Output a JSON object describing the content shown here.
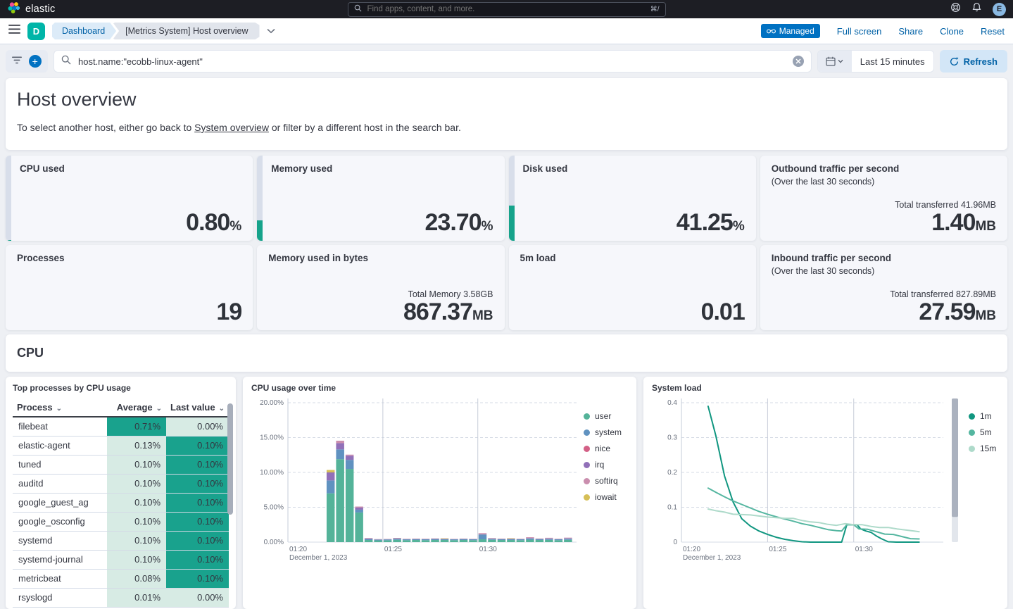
{
  "topbar": {
    "brand": "elastic",
    "search_placeholder": "Find apps, content, and more.",
    "search_shortcut": "⌘/",
    "avatar_initial": "E"
  },
  "navbar": {
    "space_badge": "D",
    "breadcrumb_root": "Dashboard",
    "breadcrumb_current": "[Metrics System] Host overview",
    "managed_label": "Managed",
    "actions": [
      {
        "label": "Full screen"
      },
      {
        "label": "Share"
      },
      {
        "label": "Clone"
      },
      {
        "label": "Reset"
      }
    ]
  },
  "querybar": {
    "query": "host.name:\"ecobb-linux-agent\"",
    "time_range": "Last 15 minutes",
    "refresh_label": "Refresh"
  },
  "overview": {
    "title": "Host overview",
    "desc_before": "To select another host, either go back to ",
    "link_text": "System overview",
    "desc_after": " or filter by a different host in the search bar."
  },
  "metrics": [
    {
      "id": "cpu-used",
      "title": "CPU used",
      "value": "0.80",
      "unit": "%",
      "progress": 0.8
    },
    {
      "id": "memory-used",
      "title": "Memory used",
      "value": "23.70",
      "unit": "%",
      "progress": 23.7
    },
    {
      "id": "disk-used",
      "title": "Disk used",
      "value": "41.25",
      "unit": "%",
      "progress": 41.25
    },
    {
      "id": "outbound-traffic",
      "title": "Outbound traffic per second",
      "subtitle": "(Over the last 30 seconds)",
      "secondary": "Total transferred 41.96MB",
      "value": "1.40",
      "unit": "MB"
    },
    {
      "id": "processes",
      "title": "Processes",
      "value": "19",
      "unit": ""
    },
    {
      "id": "memory-used-bytes",
      "title": "Memory used in bytes",
      "secondary": "Total Memory 3.58GB",
      "value": "867.37",
      "unit": "MB"
    },
    {
      "id": "load-5m",
      "title": "5m load",
      "value": "0.01",
      "unit": ""
    },
    {
      "id": "inbound-traffic",
      "title": "Inbound traffic per second",
      "subtitle": "(Over the last 30 seconds)",
      "secondary": "Total transferred 827.89MB",
      "value": "27.59",
      "unit": "MB"
    }
  ],
  "cpu_section_title": "CPU",
  "process_table": {
    "title": "Top processes by CPU usage",
    "columns": [
      "Process",
      "Average",
      "Last value"
    ],
    "rows": [
      {
        "process": "filebeat",
        "average": "0.71%",
        "avg_heat": "dark",
        "last": "0.00%",
        "last_heat": "light"
      },
      {
        "process": "elastic-agent",
        "average": "0.13%",
        "avg_heat": "light",
        "last": "0.10%",
        "last_heat": "dark"
      },
      {
        "process": "tuned",
        "average": "0.10%",
        "avg_heat": "light",
        "last": "0.10%",
        "last_heat": "dark"
      },
      {
        "process": "auditd",
        "average": "0.10%",
        "avg_heat": "light",
        "last": "0.10%",
        "last_heat": "dark"
      },
      {
        "process": "google_guest_ag",
        "average": "0.10%",
        "avg_heat": "light",
        "last": "0.10%",
        "last_heat": "dark"
      },
      {
        "process": "google_osconfig",
        "average": "0.10%",
        "avg_heat": "light",
        "last": "0.10%",
        "last_heat": "dark"
      },
      {
        "process": "systemd",
        "average": "0.10%",
        "avg_heat": "light",
        "last": "0.10%",
        "last_heat": "dark"
      },
      {
        "process": "systemd-journal",
        "average": "0.10%",
        "avg_heat": "light",
        "last": "0.10%",
        "last_heat": "dark"
      },
      {
        "process": "metricbeat",
        "average": "0.08%",
        "avg_heat": "light",
        "last": "0.10%",
        "last_heat": "dark"
      },
      {
        "process": "rsyslogd",
        "average": "0.01%",
        "avg_heat": "light",
        "last": "0.00%",
        "last_heat": "light"
      }
    ]
  },
  "chart_data": [
    {
      "type": "bar",
      "title": "CPU usage over time",
      "stacked": true,
      "ylim": [
        0,
        20
      ],
      "y_ticks": [
        "0.00%",
        "5.00%",
        "10.00%",
        "15.00%",
        "20.00%"
      ],
      "x_range_minutes": [
        0,
        15.2
      ],
      "x_ticks": [
        {
          "t": 0,
          "label": "01:20",
          "sub": "December 1, 2023"
        },
        {
          "t": 5,
          "label": "01:25"
        },
        {
          "t": 10,
          "label": "01:30"
        }
      ],
      "series_names": [
        "user",
        "system",
        "nice",
        "irq",
        "softirq",
        "iowait"
      ],
      "series_colors": [
        "#54B399",
        "#6092C0",
        "#D36086",
        "#9170B8",
        "#CA8EAE",
        "#D6BF57"
      ],
      "bars": [
        {
          "t": 2.0,
          "v": [
            7.0,
            1.85,
            0,
            1.15,
            0,
            0.35
          ]
        },
        {
          "t": 2.5,
          "v": [
            11.9,
            1.4,
            0,
            0.9,
            0.35,
            0
          ]
        },
        {
          "t": 3.0,
          "v": [
            10.5,
            1.3,
            0,
            0.6,
            0.15,
            0
          ]
        },
        {
          "t": 3.5,
          "v": [
            4.25,
            0.4,
            0,
            0.3,
            0.15,
            0
          ]
        },
        {
          "t": 4.0,
          "v": [
            0.3,
            0.15,
            0,
            0.05,
            0.08,
            0
          ]
        },
        {
          "t": 4.5,
          "v": [
            0.25,
            0.12,
            0,
            0,
            0.06,
            0
          ]
        },
        {
          "t": 5.0,
          "v": [
            0.27,
            0.12,
            0,
            0,
            0.06,
            0
          ]
        },
        {
          "t": 5.5,
          "v": [
            0.33,
            0.17,
            0,
            0,
            0.1,
            0
          ]
        },
        {
          "t": 6.0,
          "v": [
            0.28,
            0.12,
            0,
            0,
            0.07,
            0
          ]
        },
        {
          "t": 6.5,
          "v": [
            0.3,
            0.13,
            0,
            0,
            0.08,
            0
          ]
        },
        {
          "t": 7.0,
          "v": [
            0.28,
            0.14,
            0,
            0,
            0.07,
            0
          ]
        },
        {
          "t": 7.5,
          "v": [
            0.3,
            0.15,
            0,
            0,
            0.08,
            0
          ]
        },
        {
          "t": 8.0,
          "v": [
            0.3,
            0.13,
            0,
            0,
            0.07,
            0.05
          ]
        },
        {
          "t": 8.5,
          "v": [
            0.28,
            0.12,
            0,
            0,
            0.06,
            0
          ]
        },
        {
          "t": 9.0,
          "v": [
            0.3,
            0.14,
            0,
            0,
            0.07,
            0
          ]
        },
        {
          "t": 9.5,
          "v": [
            0.28,
            0.13,
            0,
            0,
            0.06,
            0
          ]
        },
        {
          "t": 10.0,
          "v": [
            0.4,
            0.7,
            0,
            0,
            0.18,
            0
          ]
        },
        {
          "t": 10.5,
          "v": [
            0.33,
            0.15,
            0,
            0,
            0.1,
            0
          ]
        },
        {
          "t": 11.0,
          "v": [
            0.3,
            0.13,
            0,
            0,
            0.08,
            0
          ]
        },
        {
          "t": 11.5,
          "v": [
            0.3,
            0.14,
            0,
            0,
            0.08,
            0.05
          ]
        },
        {
          "t": 12.0,
          "v": [
            0.28,
            0.13,
            0,
            0,
            0.07,
            0
          ]
        },
        {
          "t": 12.5,
          "v": [
            0.35,
            0.17,
            0,
            0.06,
            0.12,
            0
          ]
        },
        {
          "t": 13.0,
          "v": [
            0.3,
            0.14,
            0,
            0,
            0.08,
            0
          ]
        },
        {
          "t": 13.5,
          "v": [
            0.32,
            0.15,
            0,
            0.05,
            0.1,
            0
          ]
        },
        {
          "t": 14.0,
          "v": [
            0.28,
            0.13,
            0,
            0,
            0.07,
            0
          ]
        },
        {
          "t": 14.5,
          "v": [
            0.33,
            0.16,
            0,
            0.05,
            0.1,
            0
          ]
        }
      ]
    },
    {
      "type": "line",
      "title": "System load",
      "ylim": [
        0,
        0.4
      ],
      "y_ticks": [
        "0",
        "0.1",
        "0.2",
        "0.3",
        "0.4"
      ],
      "x_range_minutes": [
        0,
        15.2
      ],
      "x_ticks": [
        {
          "t": 0,
          "label": "01:20",
          "sub": "December 1, 2023"
        },
        {
          "t": 5,
          "label": "01:25"
        },
        {
          "t": 10,
          "label": "01:30"
        }
      ],
      "series": [
        {
          "name": "1m",
          "color": "#109680",
          "points": [
            [
              1.55,
              0.39
            ],
            [
              2.0,
              0.305
            ],
            [
              2.5,
              0.19
            ],
            [
              3.0,
              0.115
            ],
            [
              3.5,
              0.067
            ],
            [
              4.0,
              0.046
            ],
            [
              4.5,
              0.032
            ],
            [
              5.0,
              0.022
            ],
            [
              5.5,
              0.014
            ],
            [
              6.0,
              0.008
            ],
            [
              6.5,
              0.004
            ],
            [
              7.0,
              0.001
            ],
            [
              7.5,
              0
            ],
            [
              8.0,
              0
            ],
            [
              8.5,
              0
            ],
            [
              9.0,
              0
            ],
            [
              9.3,
              0
            ],
            [
              9.6,
              0.05
            ],
            [
              10.2,
              0.05
            ],
            [
              10.4,
              0.038
            ],
            [
              10.7,
              0.032
            ],
            [
              11.0,
              0.028
            ],
            [
              11.3,
              0.018
            ],
            [
              11.6,
              0.01
            ],
            [
              12.0,
              0.001
            ],
            [
              12.5,
              0
            ],
            [
              13.0,
              0
            ],
            [
              13.5,
              0
            ],
            [
              13.8,
              0
            ]
          ]
        },
        {
          "name": "5m",
          "color": "#54B6A0",
          "points": [
            [
              1.55,
              0.155
            ],
            [
              2.0,
              0.143
            ],
            [
              2.5,
              0.13
            ],
            [
              3.0,
              0.118
            ],
            [
              3.5,
              0.108
            ],
            [
              4.0,
              0.098
            ],
            [
              4.5,
              0.088
            ],
            [
              5.0,
              0.08
            ],
            [
              5.5,
              0.073
            ],
            [
              6.0,
              0.066
            ],
            [
              6.5,
              0.06
            ],
            [
              7.0,
              0.053
            ],
            [
              7.5,
              0.048
            ],
            [
              8.0,
              0.042
            ],
            [
              8.5,
              0.036
            ],
            [
              9.0,
              0.033
            ],
            [
              9.3,
              0.032
            ],
            [
              9.6,
              0.05
            ],
            [
              10.0,
              0.05
            ],
            [
              10.3,
              0.038
            ],
            [
              10.8,
              0.037
            ],
            [
              11.3,
              0.03
            ],
            [
              11.8,
              0.023
            ],
            [
              12.3,
              0.022
            ],
            [
              12.8,
              0.016
            ],
            [
              13.3,
              0.01
            ],
            [
              13.8,
              0.009
            ]
          ]
        },
        {
          "name": "15m",
          "color": "#AEDACA",
          "points": [
            [
              1.55,
              0.095
            ],
            [
              2.0,
              0.09
            ],
            [
              2.5,
              0.086
            ],
            [
              3.0,
              0.08
            ],
            [
              3.5,
              0.079
            ],
            [
              4.0,
              0.078
            ],
            [
              4.5,
              0.075
            ],
            [
              5.0,
              0.072
            ],
            [
              5.5,
              0.07
            ],
            [
              6.0,
              0.068
            ],
            [
              6.5,
              0.068
            ],
            [
              7.0,
              0.062
            ],
            [
              7.5,
              0.058
            ],
            [
              8.0,
              0.056
            ],
            [
              8.5,
              0.051
            ],
            [
              9.0,
              0.048
            ],
            [
              9.5,
              0.053
            ],
            [
              10.0,
              0.05
            ],
            [
              10.5,
              0.05
            ],
            [
              11.0,
              0.045
            ],
            [
              11.5,
              0.042
            ],
            [
              12.0,
              0.042
            ],
            [
              12.5,
              0.038
            ],
            [
              13.0,
              0.035
            ],
            [
              13.5,
              0.032
            ],
            [
              13.8,
              0.03
            ]
          ]
        }
      ]
    }
  ]
}
